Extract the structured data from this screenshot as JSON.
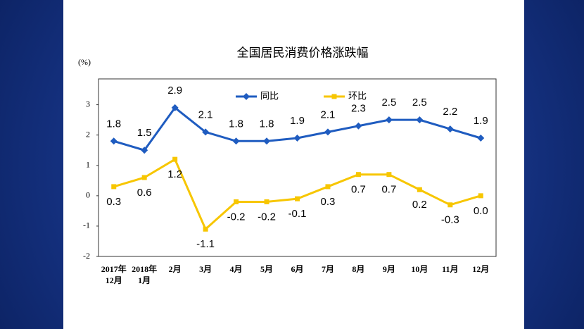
{
  "chart_data": {
    "type": "line",
    "title": "全国居民消费价格涨跌幅",
    "y_label": "(%)",
    "categories": [
      "2017年\n12月",
      "2018年\n1月",
      "2月",
      "3月",
      "4月",
      "5月",
      "6月",
      "7月",
      "8月",
      "9月",
      "10月",
      "11月",
      "12月"
    ],
    "series": [
      {
        "name": "同比",
        "color": "#1f5cc0",
        "marker": "diamond",
        "values": [
          1.8,
          1.5,
          2.9,
          2.1,
          1.8,
          1.8,
          1.9,
          2.1,
          2.3,
          2.5,
          2.5,
          2.2,
          1.9
        ],
        "value_labels": [
          "1.8",
          "1.5",
          "2.9",
          "2.1",
          "1.8",
          "1.8",
          "1.9",
          "2.1",
          "2.3",
          "2.5",
          "2.5",
          "2.2",
          "1.9"
        ]
      },
      {
        "name": "环比",
        "color": "#f7c600",
        "marker": "square",
        "values": [
          0.3,
          0.6,
          1.2,
          -1.1,
          -0.2,
          -0.2,
          -0.1,
          0.3,
          0.7,
          0.7,
          0.2,
          -0.3,
          0.0
        ],
        "value_labels": [
          "0.3",
          "0.6",
          "1.2",
          "-1.1",
          "-0.2",
          "-0.2",
          "-0.1",
          "0.3",
          "0.7",
          "0.7",
          "0.2",
          "-0.3",
          "0.0"
        ]
      }
    ],
    "ylim": [
      -2,
      3.85
    ],
    "yticks": [
      -2,
      -1,
      0,
      1,
      2,
      3
    ],
    "grid": false,
    "legend": "top"
  }
}
